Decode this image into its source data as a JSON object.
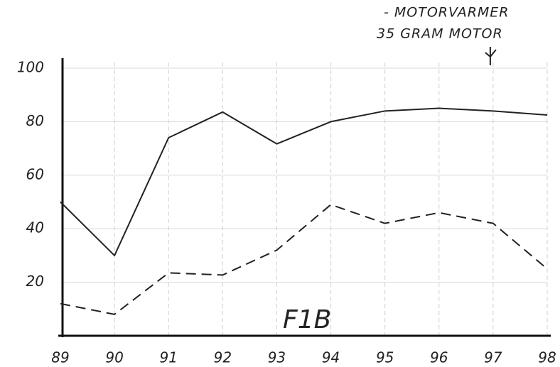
{
  "chart_data": {
    "type": "line",
    "title": "F1B",
    "annotations": [
      "- MOTORVARMER",
      "35 GRAM MOTOR"
    ],
    "categories": [
      "89",
      "90",
      "91",
      "92",
      "93",
      "94",
      "95",
      "96",
      "97",
      "98"
    ],
    "series": [
      {
        "color": "#222222",
        "style": "solid",
        "values": [
          50,
          30,
          74,
          83.6,
          71.7,
          80,
          84,
          85,
          84,
          82.5
        ]
      },
      {
        "color": "#222222",
        "style": "dashed",
        "values": [
          12,
          8,
          23.5,
          22.7,
          32,
          49,
          42,
          46,
          42,
          25
        ]
      }
    ],
    "ylim": [
      0,
      100
    ],
    "yticks": [
      20,
      40,
      60,
      80,
      100
    ],
    "grid": true
  }
}
